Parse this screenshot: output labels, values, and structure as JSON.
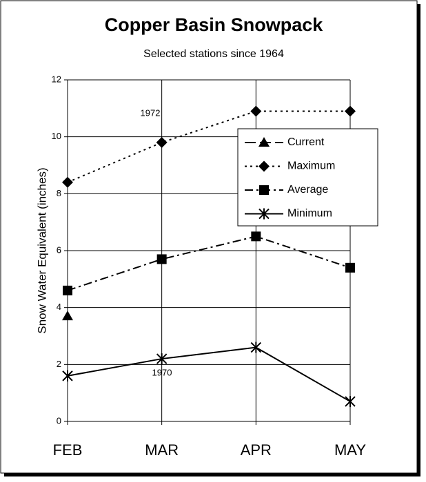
{
  "chart_data": {
    "type": "line",
    "title": "Copper Basin Snowpack",
    "subtitle": "Selected stations since 1964",
    "y_label": "Snow Water Equivalent (inches)",
    "categories": [
      "FEB",
      "MAR",
      "APR",
      "MAY"
    ],
    "series": [
      {
        "name": "Current",
        "color": "#000000",
        "dash": "long-dash",
        "marker": "triangle",
        "values": [
          3.7,
          null,
          null,
          null
        ]
      },
      {
        "name": "Maximum",
        "color": "#000000",
        "dash": "dotted",
        "marker": "diamond",
        "values": [
          8.4,
          9.8,
          10.9,
          10.9
        ]
      },
      {
        "name": "Average",
        "color": "#000000",
        "dash": "dash-dot",
        "marker": "square",
        "values": [
          4.6,
          5.7,
          6.5,
          5.4
        ]
      },
      {
        "name": "Minimum",
        "color": "#000000",
        "dash": "solid",
        "marker": "asterisk",
        "values": [
          1.6,
          2.2,
          2.6,
          0.7
        ]
      }
    ],
    "annotations": [
      "1972",
      "1970"
    ],
    "ylim": [
      0,
      12
    ],
    "yticks": [
      0,
      2,
      4,
      6,
      8,
      10,
      12
    ],
    "grid": true,
    "legend": "upper right"
  }
}
